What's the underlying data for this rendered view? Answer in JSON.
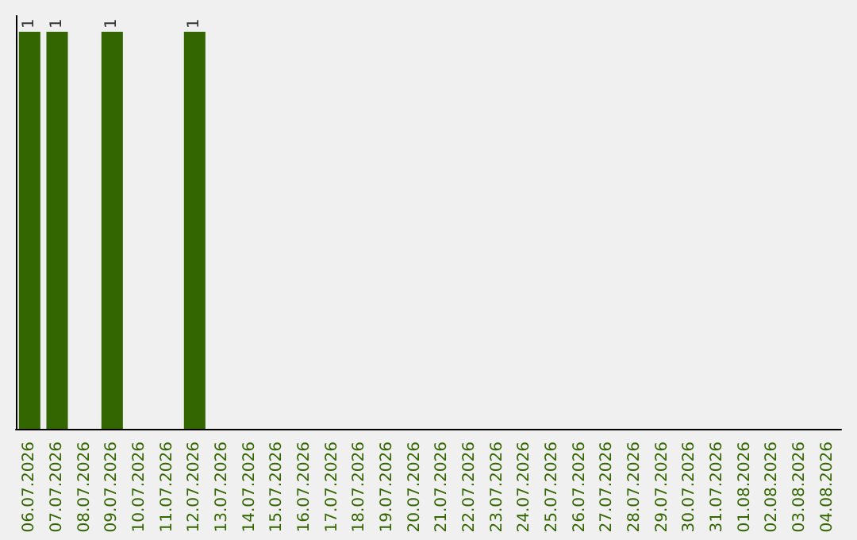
{
  "chart_data": {
    "type": "bar",
    "categories": [
      "06.07.2026",
      "07.07.2026",
      "08.07.2026",
      "09.07.2026",
      "10.07.2026",
      "11.07.2026",
      "12.07.2026",
      "13.07.2026",
      "14.07.2026",
      "15.07.2026",
      "16.07.2026",
      "17.07.2026",
      "18.07.2026",
      "19.07.2026",
      "20.07.2026",
      "21.07.2026",
      "22.07.2026",
      "23.07.2026",
      "24.07.2026",
      "25.07.2026",
      "26.07.2026",
      "27.07.2026",
      "28.07.2026",
      "29.07.2026",
      "30.07.2026",
      "31.07.2026",
      "01.08.2026",
      "02.08.2026",
      "03.08.2026",
      "04.08.2026"
    ],
    "values": [
      1,
      1,
      0,
      1,
      0,
      0,
      1,
      0,
      0,
      0,
      0,
      0,
      0,
      0,
      0,
      0,
      0,
      0,
      0,
      0,
      0,
      0,
      0,
      0,
      0,
      0,
      0,
      0,
      0,
      0
    ],
    "value_labels": [
      "1",
      "1",
      null,
      "1",
      null,
      null,
      "1",
      null,
      null,
      null,
      null,
      null,
      null,
      null,
      null,
      null,
      null,
      null,
      null,
      null,
      null,
      null,
      null,
      null,
      null,
      null,
      null,
      null,
      null,
      null
    ],
    "color": "#336600",
    "grid": false
  }
}
